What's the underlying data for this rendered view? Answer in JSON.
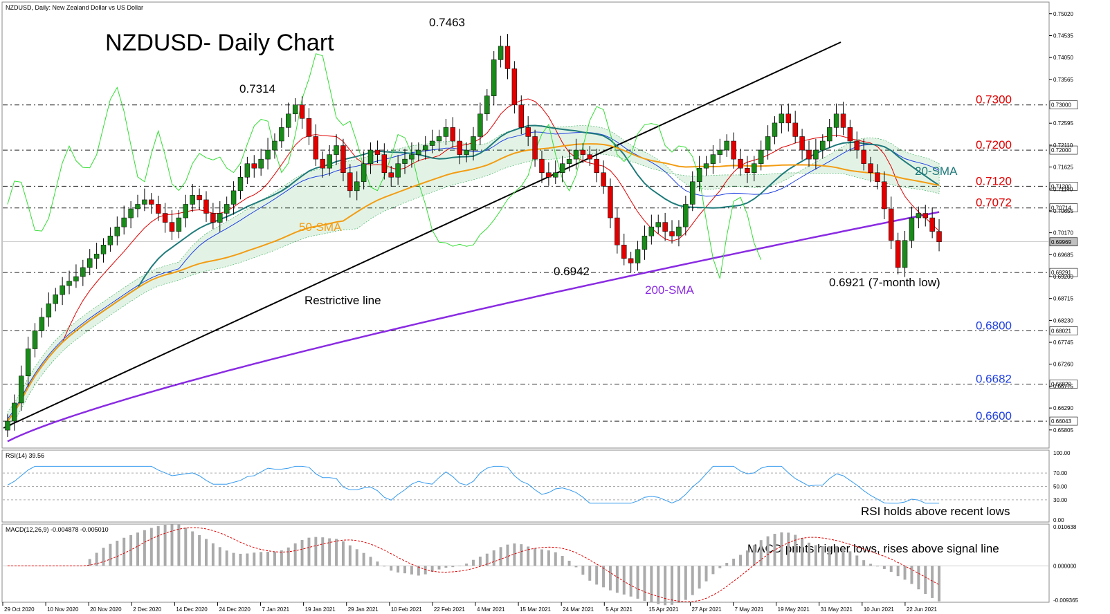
{
  "header": {
    "symbol_line": "NZDUSD, Daily:  New Zealand Dollar vs US Dollar",
    "rsi_label": "RSI(14) 39.56",
    "macd_label": "MACD(12,26,9) -0.004878 -0.005010"
  },
  "title": "NZDUSD- Daily Chart",
  "colors": {
    "bull": "#1a8a1a",
    "bear": "#e00000",
    "sma20": "#1f7a7a",
    "sma50": "#f39c12",
    "sma200": "#8a2be2",
    "tenkan": "#e00000",
    "kijun": "#1f3fe0",
    "chikou": "#33dd33",
    "rsi": "#3399ee",
    "macd_hist": "#aaaaaa",
    "macd_signal": "#e00000",
    "level_red": "#e00000",
    "level_blue": "#1f3fe0"
  },
  "annotations": {
    "peak_7314": "0.7314",
    "peak_7463": "0.7463",
    "low_6942": "0.6942",
    "low_6921": "0.6921 (7-month low)",
    "sma50": "50-SMA",
    "sma200": "200-SMA",
    "sma20": "20-SMA",
    "restrictive": "Restrictive line",
    "rsi_note": "RSI holds above recent lows",
    "macd_note": "MACD prints higher lows, rises above signal line"
  },
  "levels": [
    {
      "value": 0.73,
      "label": "0.7300",
      "color": "red",
      "tag": "0.73000"
    },
    {
      "value": 0.72,
      "label": "0.7200",
      "color": "red",
      "tag": "0.72000"
    },
    {
      "value": 0.712,
      "label": "0.7120",
      "color": "red",
      "tag": "0.71200"
    },
    {
      "value": 0.7072,
      "label": "0.7072",
      "color": "red",
      "tag": "0.70714"
    },
    {
      "value": 0.6929,
      "label": "",
      "color": "none",
      "tag": "0.69291"
    },
    {
      "value": 0.68,
      "label": "0.6800",
      "color": "blue",
      "tag": "0.68021"
    },
    {
      "value": 0.6682,
      "label": "0.6682",
      "color": "blue",
      "tag": "0.66820"
    },
    {
      "value": 0.66,
      "label": "0.6600",
      "color": "blue",
      "tag": "0.66043"
    }
  ],
  "price_axis": {
    "ticks": [
      "0.75020",
      "0.74535",
      "0.74050",
      "0.73565",
      "0.72595",
      "0.72110",
      "0.71625",
      "0.71140",
      "0.70655",
      "0.70170",
      "0.69685",
      "0.69200",
      "0.68715",
      "0.68230",
      "0.67745",
      "0.67260",
      "0.66775",
      "0.66290",
      "0.65805"
    ],
    "current": "0.69969"
  },
  "rsi_axis": [
    "100.00",
    "70.00",
    "50.00",
    "30.00",
    "0.00"
  ],
  "macd_axis": [
    "0.010638",
    "0.000000",
    "-0.009365"
  ],
  "date_labels": [
    "29 Oct 2020",
    "10 Nov 2020",
    "20 Nov 2020",
    "2 Dec 2020",
    "14 Dec 2020",
    "24 Dec 2020",
    "7 Jan 2021",
    "19 Jan 2021",
    "29 Jan 2021",
    "10 Feb 2021",
    "22 Feb 2021",
    "4 Mar 2021",
    "15 Mar 2021",
    "24 Mar 2021",
    "5 Apr 2021",
    "15 Apr 2021",
    "27 Apr 2021",
    "7 May 2021",
    "19 May 2021",
    "31 May 2021",
    "10 Jun 2021",
    "22 Jun 2021"
  ],
  "chart_data": {
    "type": "candlestick",
    "ylim": [
      0.6545,
      0.752
    ],
    "candles_close": [
      0.66,
      0.664,
      0.67,
      0.676,
      0.68,
      0.683,
      0.686,
      0.688,
      0.69,
      0.691,
      0.692,
      0.694,
      0.696,
      0.697,
      0.699,
      0.701,
      0.703,
      0.705,
      0.707,
      0.708,
      0.709,
      0.708,
      0.706,
      0.704,
      0.702,
      0.705,
      0.708,
      0.71,
      0.709,
      0.706,
      0.704,
      0.706,
      0.708,
      0.711,
      0.714,
      0.717,
      0.716,
      0.718,
      0.72,
      0.722,
      0.725,
      0.728,
      0.73,
      0.727,
      0.723,
      0.718,
      0.716,
      0.719,
      0.721,
      0.715,
      0.711,
      0.713,
      0.717,
      0.72,
      0.719,
      0.715,
      0.714,
      0.717,
      0.718,
      0.719,
      0.72,
      0.721,
      0.722,
      0.723,
      0.725,
      0.722,
      0.719,
      0.72,
      0.723,
      0.728,
      0.732,
      0.74,
      0.743,
      0.738,
      0.73,
      0.725,
      0.723,
      0.718,
      0.715,
      0.714,
      0.715,
      0.717,
      0.718,
      0.72,
      0.719,
      0.718,
      0.715,
      0.712,
      0.705,
      0.699,
      0.696,
      0.695,
      0.698,
      0.701,
      0.703,
      0.704,
      0.702,
      0.701,
      0.703,
      0.708,
      0.713,
      0.716,
      0.717,
      0.719,
      0.72,
      0.722,
      0.718,
      0.716,
      0.715,
      0.717,
      0.72,
      0.723,
      0.726,
      0.728,
      0.726,
      0.723,
      0.72,
      0.718,
      0.72,
      0.722,
      0.725,
      0.728,
      0.725,
      0.722,
      0.72,
      0.717,
      0.715,
      0.713,
      0.707,
      0.7,
      0.694,
      0.7,
      0.705,
      0.706,
      0.705,
      0.702,
      0.6997
    ],
    "sma200_end": 0.7063,
    "series": [
      {
        "name": "20-SMA"
      },
      {
        "name": "50-SMA"
      },
      {
        "name": "200-SMA"
      }
    ]
  }
}
